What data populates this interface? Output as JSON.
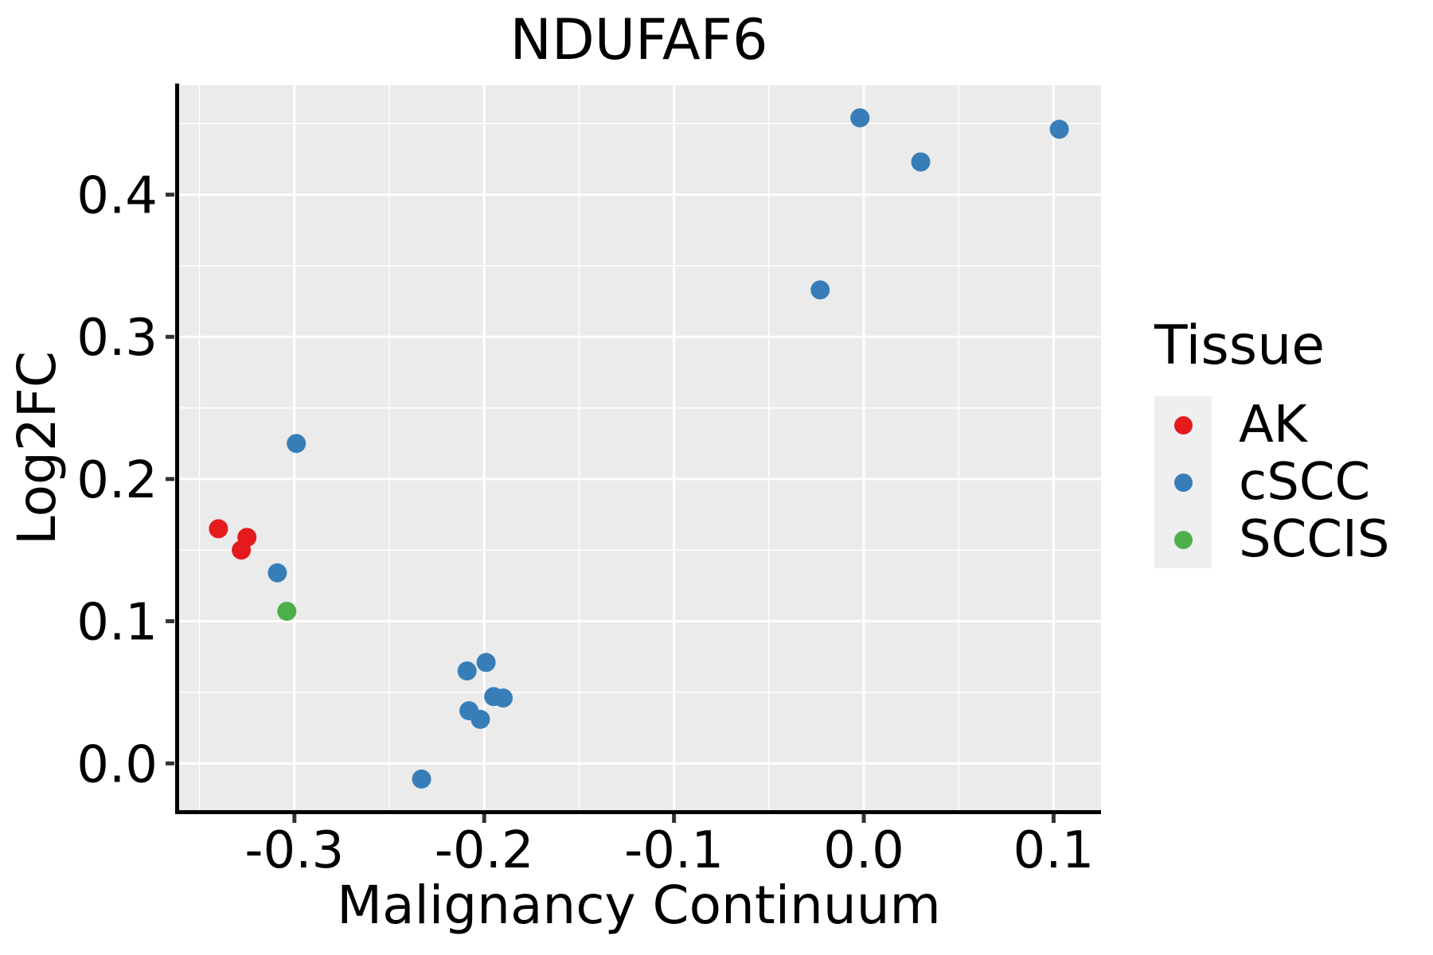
{
  "title": "NDUFAF6",
  "colors": {
    "panel_bg": "#EBEBEB",
    "gridline": "#FFFFFF",
    "legend_key_bg": "#EFEFEF",
    "axis_line": "#000000",
    "tick_mark": "#333333",
    "text": "#000000",
    "ak_red": "#E41A1C",
    "cscc_blue": "#377EB8",
    "sccis_green": "#4DAF4A"
  },
  "legend": {
    "title": "Tissue",
    "entries": [
      {
        "label": "AK",
        "series": "AK"
      },
      {
        "label": "cSCC",
        "series": "cSCC"
      },
      {
        "label": "SCCIS",
        "series": "SCCIS"
      }
    ]
  },
  "chart_data": {
    "type": "scatter",
    "title": "NDUFAF6",
    "xlabel": "Malignancy Continuum",
    "ylabel": "Log2FC",
    "xlim": [
      -0.362,
      0.125
    ],
    "ylim": [
      -0.034,
      0.477
    ],
    "x_ticks": [
      -0.3,
      -0.2,
      -0.1,
      0.0,
      0.1
    ],
    "x_tick_labels": [
      "-0.3",
      "-0.2",
      "-0.1",
      "0.0",
      "0.1"
    ],
    "y_ticks": [
      0.0,
      0.1,
      0.2,
      0.3,
      0.4
    ],
    "y_tick_labels": [
      "0.0",
      "0.1",
      "0.2",
      "0.3",
      "0.4"
    ],
    "grid": true,
    "minor_grid": true,
    "legend_position": "right",
    "series": [
      {
        "name": "AK",
        "color": "#E41A1C",
        "points": [
          [
            -0.34,
            0.165
          ],
          [
            -0.325,
            0.159
          ],
          [
            -0.328,
            0.15
          ]
        ]
      },
      {
        "name": "cSCC",
        "color": "#377EB8",
        "points": [
          [
            -0.309,
            0.134
          ],
          [
            -0.299,
            0.225
          ],
          [
            -0.233,
            -0.011
          ],
          [
            -0.209,
            0.065
          ],
          [
            -0.199,
            0.071
          ],
          [
            -0.208,
            0.037
          ],
          [
            -0.202,
            0.031
          ],
          [
            -0.195,
            0.047
          ],
          [
            -0.19,
            0.046
          ],
          [
            -0.023,
            0.333
          ],
          [
            -0.002,
            0.454
          ],
          [
            0.03,
            0.423
          ],
          [
            0.103,
            0.446
          ]
        ]
      },
      {
        "name": "SCCIS",
        "color": "#4DAF4A",
        "points": [
          [
            -0.304,
            0.107
          ]
        ]
      }
    ]
  }
}
